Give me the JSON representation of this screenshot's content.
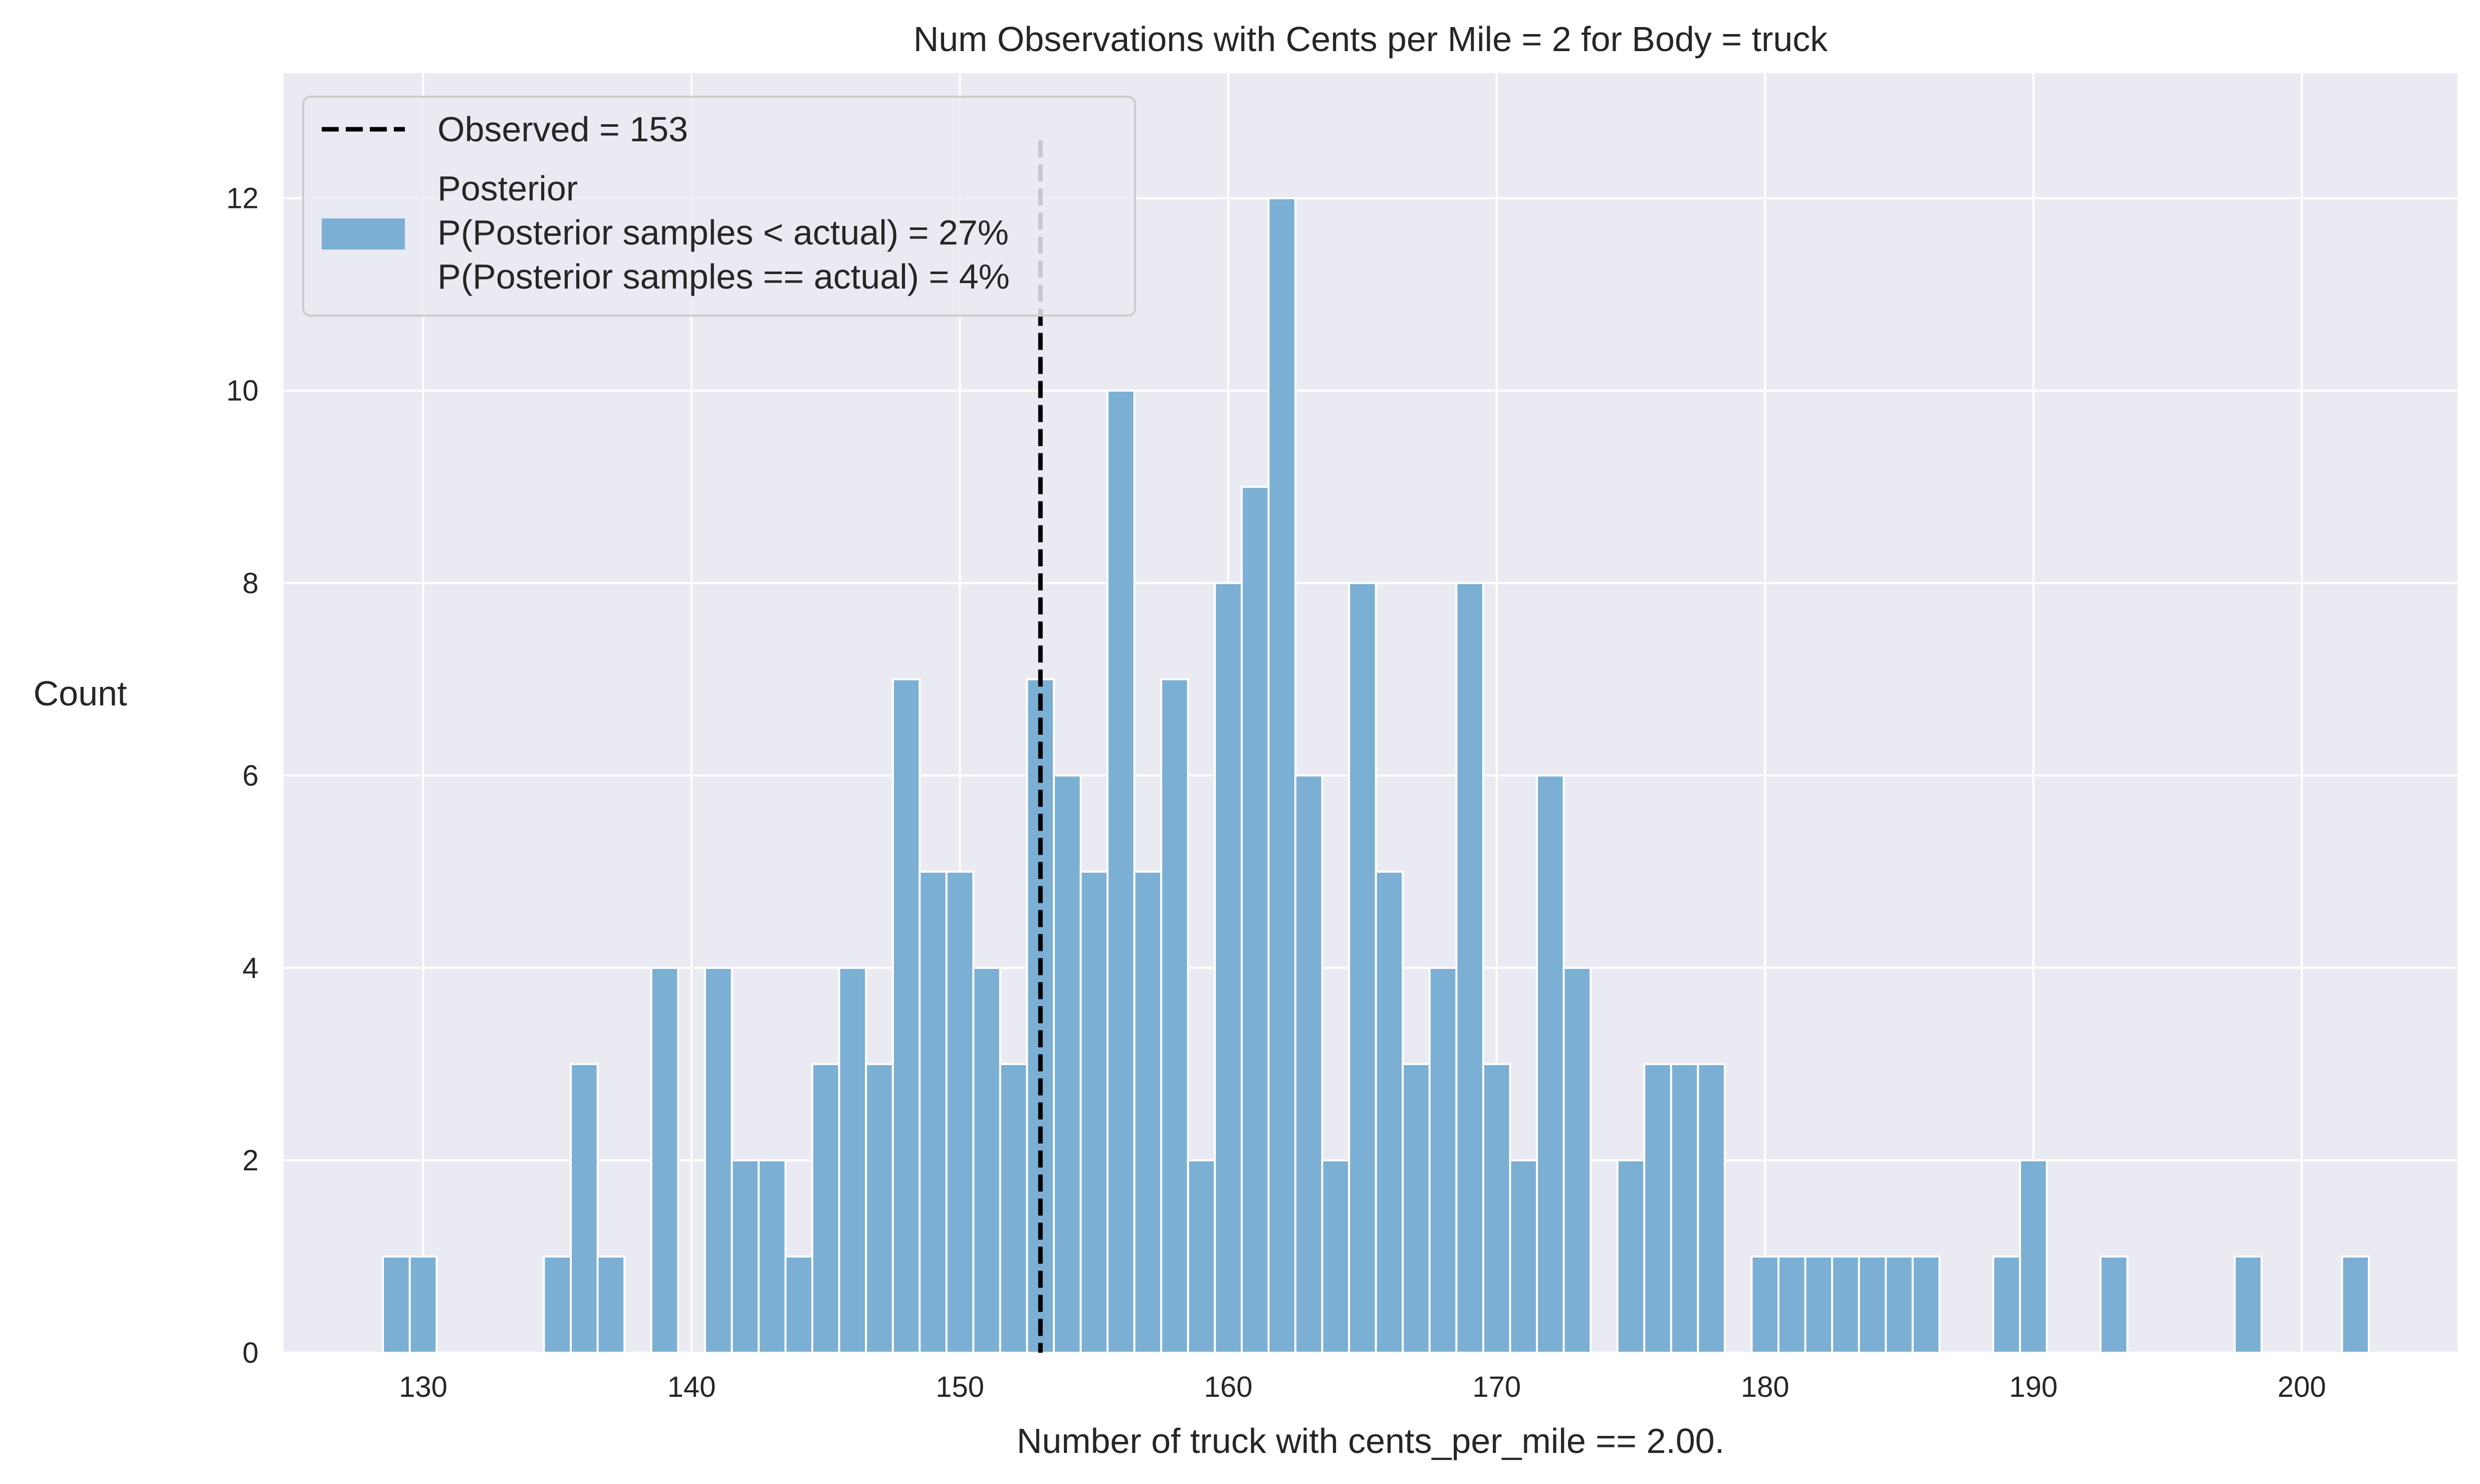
{
  "chart_data": {
    "type": "bar",
    "title": "Num Observations with Cents per Mile = 2 for Body = truck",
    "xlabel": "Number of truck with cents_per_mile == 2.00.",
    "ylabel": "Count",
    "xlim": [
      124.8,
      205.8
    ],
    "ylim": [
      0,
      13.3
    ],
    "xticks": [
      130,
      140,
      150,
      160,
      170,
      180,
      190,
      200
    ],
    "yticks": [
      0,
      2,
      4,
      6,
      8,
      10,
      12
    ],
    "grid": true,
    "bin_width": 1,
    "observed": 153,
    "legend": {
      "placement": "top-left",
      "observed_label": "Observed = 153",
      "posterior_lines": [
        "Posterior",
        "P(Posterior samples < actual) = 27%",
        "P(Posterior samples == actual) = 4%"
      ]
    },
    "bins": [
      {
        "x": 129,
        "count": 1
      },
      {
        "x": 130,
        "count": 1
      },
      {
        "x": 135,
        "count": 1
      },
      {
        "x": 136,
        "count": 3
      },
      {
        "x": 137,
        "count": 1
      },
      {
        "x": 139,
        "count": 4
      },
      {
        "x": 141,
        "count": 4
      },
      {
        "x": 142,
        "count": 2
      },
      {
        "x": 143,
        "count": 2
      },
      {
        "x": 144,
        "count": 1
      },
      {
        "x": 145,
        "count": 3
      },
      {
        "x": 146,
        "count": 4
      },
      {
        "x": 147,
        "count": 3
      },
      {
        "x": 148,
        "count": 7
      },
      {
        "x": 149,
        "count": 5
      },
      {
        "x": 150,
        "count": 5
      },
      {
        "x": 151,
        "count": 4
      },
      {
        "x": 152,
        "count": 3
      },
      {
        "x": 153,
        "count": 7
      },
      {
        "x": 154,
        "count": 6
      },
      {
        "x": 155,
        "count": 5
      },
      {
        "x": 156,
        "count": 10
      },
      {
        "x": 157,
        "count": 5
      },
      {
        "x": 158,
        "count": 7
      },
      {
        "x": 159,
        "count": 2
      },
      {
        "x": 160,
        "count": 8
      },
      {
        "x": 161,
        "count": 9
      },
      {
        "x": 162,
        "count": 12
      },
      {
        "x": 163,
        "count": 6
      },
      {
        "x": 164,
        "count": 2
      },
      {
        "x": 165,
        "count": 8
      },
      {
        "x": 166,
        "count": 5
      },
      {
        "x": 167,
        "count": 3
      },
      {
        "x": 168,
        "count": 4
      },
      {
        "x": 169,
        "count": 8
      },
      {
        "x": 170,
        "count": 3
      },
      {
        "x": 171,
        "count": 2
      },
      {
        "x": 172,
        "count": 6
      },
      {
        "x": 173,
        "count": 4
      },
      {
        "x": 175,
        "count": 2
      },
      {
        "x": 176,
        "count": 3
      },
      {
        "x": 177,
        "count": 3
      },
      {
        "x": 178,
        "count": 3
      },
      {
        "x": 180,
        "count": 1
      },
      {
        "x": 181,
        "count": 1
      },
      {
        "x": 182,
        "count": 1
      },
      {
        "x": 183,
        "count": 1
      },
      {
        "x": 184,
        "count": 1
      },
      {
        "x": 185,
        "count": 1
      },
      {
        "x": 186,
        "count": 1
      },
      {
        "x": 189,
        "count": 1
      },
      {
        "x": 190,
        "count": 2
      },
      {
        "x": 193,
        "count": 1
      },
      {
        "x": 198,
        "count": 1
      },
      {
        "x": 202,
        "count": 1
      }
    ],
    "colors": {
      "bar": "#7bafd4",
      "plot_background": "#eaeaf2",
      "grid": "#ffffff",
      "observed_line": "#000000",
      "text": "#262626"
    }
  }
}
